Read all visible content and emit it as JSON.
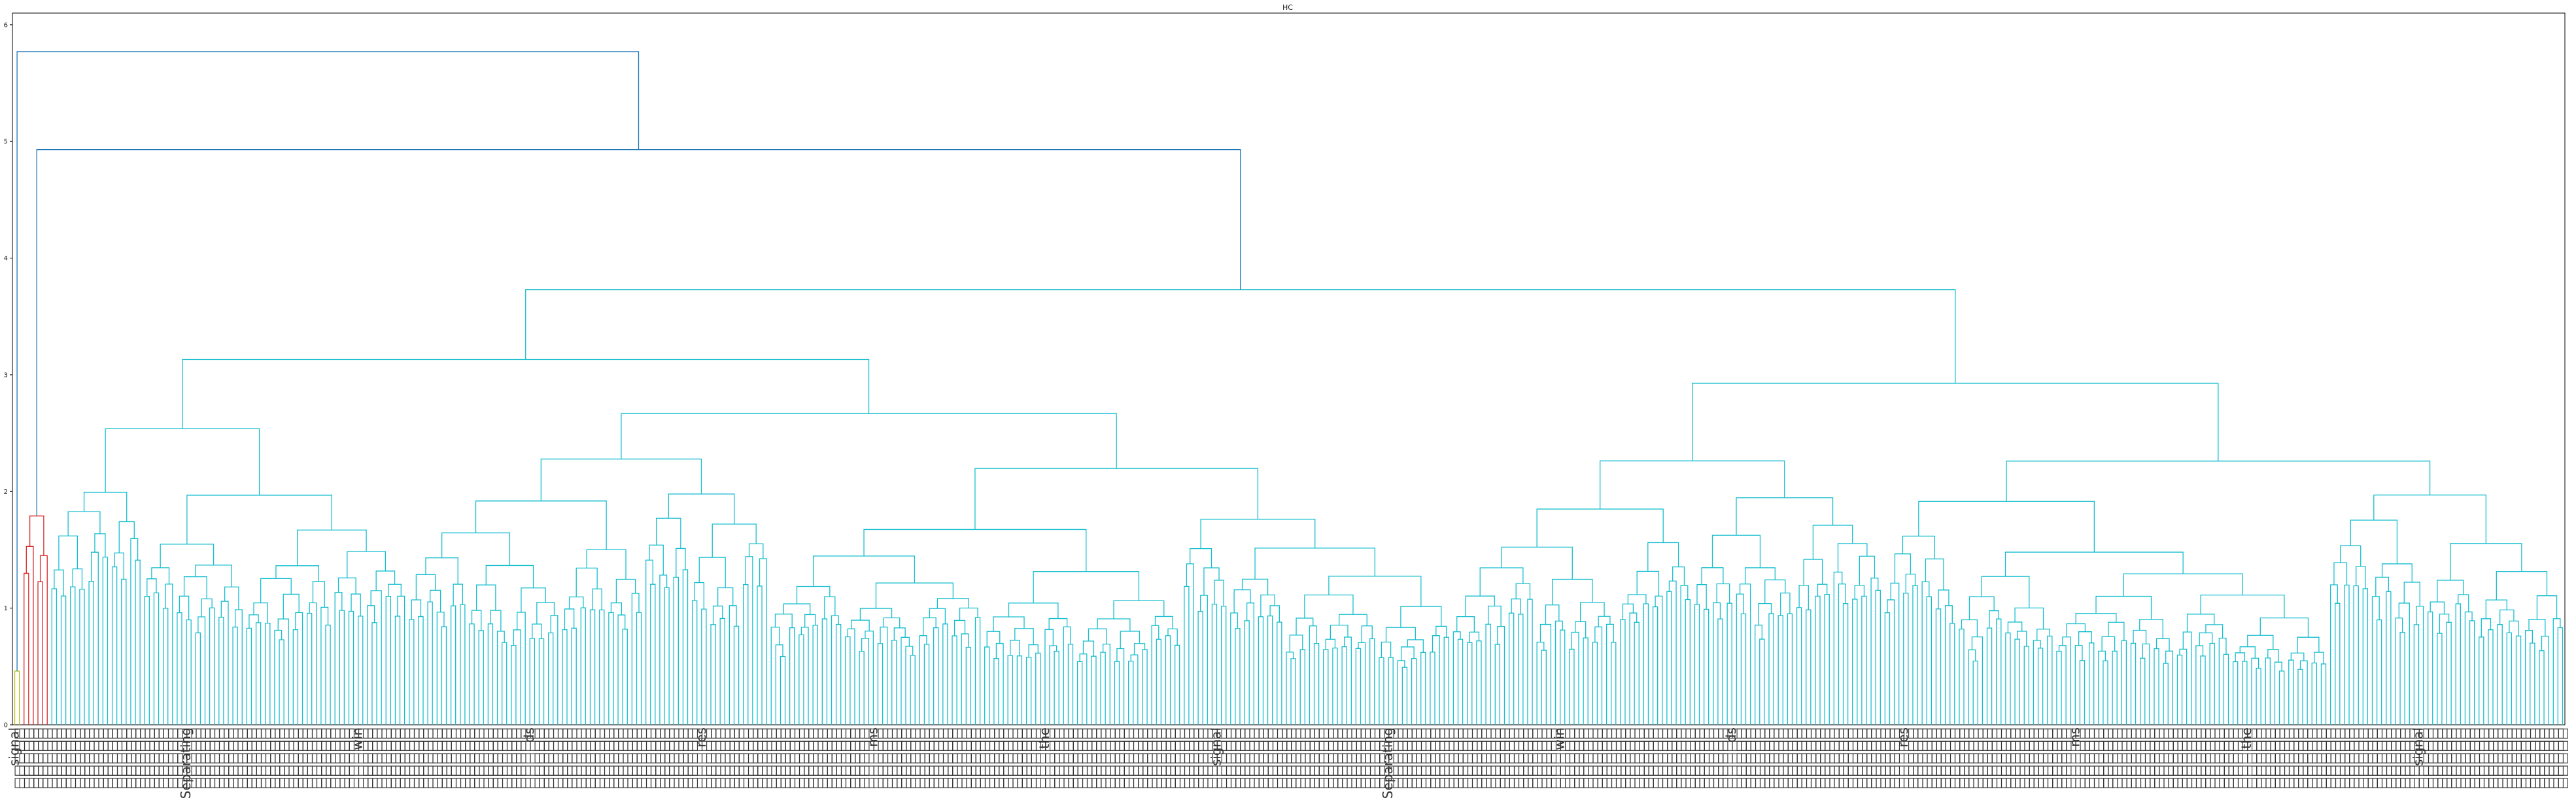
{
  "chart_data": {
    "type": "dendrogram",
    "title": "HC",
    "xlabel": "",
    "ylabel": "",
    "ylim": [
      0,
      6.1
    ],
    "y_ticks": [
      0,
      1,
      2,
      3,
      4,
      5,
      6
    ],
    "grid": false,
    "legend": "none",
    "colors": {
      "top_links": "#1f77b4",
      "cluster_main": "#17becf",
      "cluster_red": "#d62728",
      "cluster_olive": "#bcbd22"
    },
    "leaf_count": 550,
    "leaf_labels_visible": [
      "signal",
      "Separating",
      "win",
      "ds",
      "res",
      "ms",
      "the"
    ],
    "top_merges": [
      {
        "height": 5.77,
        "joins": [
          "cluster_olive",
          "rest"
        ]
      },
      {
        "height": 4.93,
        "joins": [
          "cluster_red",
          "cluster_main"
        ]
      },
      {
        "height": 3.73,
        "joins": [
          "cluster_main.left",
          "cluster_main.right"
        ]
      },
      {
        "height": 3.67,
        "joins": [
          "subgroup",
          "subgroup"
        ]
      },
      {
        "height": 3.44,
        "joins": [
          "subgroup",
          "subgroup"
        ]
      },
      {
        "height": 3.0,
        "joins": [
          "subgroup",
          "subgroup"
        ]
      },
      {
        "height": 2.9,
        "joins": [
          "subgroup",
          "subgroup"
        ]
      },
      {
        "height": 2.55,
        "joins": [
          "subgroup",
          "subgroup"
        ]
      },
      {
        "height": 2.45,
        "joins": [
          "subgroup",
          "subgroup"
        ]
      },
      {
        "height": 2.2,
        "joins": [
          "subgroup",
          "subgroup"
        ]
      }
    ],
    "cluster_heights": {
      "cluster_olive": 0.46,
      "cluster_red": 1.79
    }
  }
}
